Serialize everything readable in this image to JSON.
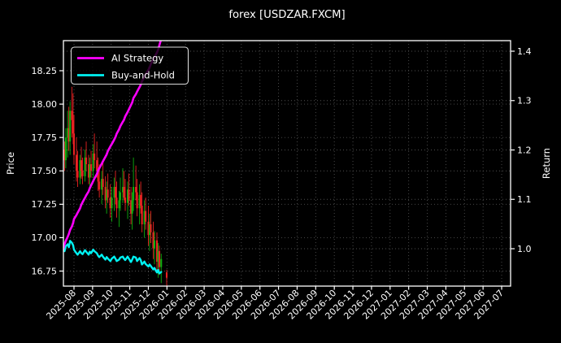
{
  "title": "forex [USDZAR.FXCM]",
  "colors": {
    "background": "#000000",
    "text": "#ffffff",
    "grid": "#4f4f4f",
    "spine": "#ffffff",
    "candle_up": "#0faf0f",
    "candle_down": "#ea2222",
    "ai_strategy": "#ff00ff",
    "buy_and_hold": "#00f2f2",
    "legend_border": "#d9d9d9"
  },
  "chart_data": {
    "type": "candlestick+line",
    "title": "forex [USDZAR.FXCM]",
    "grid": true,
    "left_axis": {
      "label": "Price",
      "ticks": [
        16.75,
        17.0,
        17.25,
        17.5,
        17.75,
        18.0,
        18.25
      ],
      "range": [
        16.64,
        18.48
      ]
    },
    "right_axis": {
      "label": "Return",
      "ticks": [
        1.0,
        1.1,
        1.2,
        1.3,
        1.4
      ],
      "range": [
        0.924,
        1.421
      ]
    },
    "x_axis": {
      "tick_rotation": 45,
      "range": [
        "2025-07-14",
        "2027-07-16"
      ],
      "tick_labels": [
        "2025-08",
        "2025-09",
        "2025-10",
        "2025-11",
        "2025-12",
        "2026-01",
        "2026-02",
        "2026-03",
        "2026-04",
        "2026-05",
        "2026-06",
        "2026-07",
        "2026-08",
        "2026-09",
        "2026-10",
        "2026-11",
        "2026-12",
        "2027-01",
        "2027-02",
        "2027-03",
        "2027-04",
        "2027-05",
        "2027-06",
        "2027-07"
      ]
    },
    "legend": [
      {
        "label": "AI Strategy",
        "color": "#ff00ff"
      },
      {
        "label": "Buy-and-Hold",
        "color": "#00f2f2"
      }
    ],
    "candles": [
      [
        "2025-07-14",
        17.6,
        17.78,
        17.38,
        17.66
      ],
      [
        "2025-07-16",
        17.66,
        17.72,
        17.5,
        17.58
      ],
      [
        "2025-07-18",
        17.58,
        17.82,
        17.52,
        17.75
      ],
      [
        "2025-07-21",
        17.75,
        17.95,
        17.6,
        17.82
      ],
      [
        "2025-07-23",
        17.82,
        17.98,
        17.65,
        17.72
      ],
      [
        "2025-07-25",
        17.72,
        18.02,
        17.62,
        17.95
      ],
      [
        "2025-07-28",
        17.95,
        18.13,
        17.75,
        17.88
      ],
      [
        "2025-07-30",
        17.88,
        18.08,
        17.7,
        17.78
      ],
      [
        "2025-08-01",
        17.78,
        17.92,
        17.55,
        17.62
      ],
      [
        "2025-08-05",
        17.62,
        17.75,
        17.42,
        17.5
      ],
      [
        "2025-08-07",
        17.5,
        17.65,
        17.38,
        17.45
      ],
      [
        "2025-08-11",
        17.45,
        17.62,
        17.4,
        17.58
      ],
      [
        "2025-08-13",
        17.58,
        17.68,
        17.44,
        17.5
      ],
      [
        "2025-08-15",
        17.5,
        17.6,
        17.4,
        17.46
      ],
      [
        "2025-08-19",
        17.46,
        17.66,
        17.42,
        17.6
      ],
      [
        "2025-08-21",
        17.6,
        17.72,
        17.5,
        17.55
      ],
      [
        "2025-08-25",
        17.55,
        17.62,
        17.4,
        17.45
      ],
      [
        "2025-08-27",
        17.45,
        17.6,
        17.38,
        17.55
      ],
      [
        "2025-08-29",
        17.55,
        17.65,
        17.45,
        17.5
      ],
      [
        "2025-09-02",
        17.5,
        17.7,
        17.45,
        17.63
      ],
      [
        "2025-09-04",
        17.63,
        17.78,
        17.52,
        17.58
      ],
      [
        "2025-09-08",
        17.58,
        17.72,
        17.45,
        17.5
      ],
      [
        "2025-09-10",
        17.5,
        17.6,
        17.35,
        17.42
      ],
      [
        "2025-09-12",
        17.42,
        17.55,
        17.3,
        17.36
      ],
      [
        "2025-09-16",
        17.36,
        17.5,
        17.25,
        17.44
      ],
      [
        "2025-09-18",
        17.44,
        17.58,
        17.32,
        17.38
      ],
      [
        "2025-09-22",
        17.38,
        17.46,
        17.22,
        17.28
      ],
      [
        "2025-09-24",
        17.28,
        17.42,
        17.18,
        17.36
      ],
      [
        "2025-09-26",
        17.36,
        17.48,
        17.26,
        17.3
      ],
      [
        "2025-09-30",
        17.3,
        17.4,
        17.15,
        17.22
      ],
      [
        "2025-10-02",
        17.22,
        17.38,
        17.12,
        17.3
      ],
      [
        "2025-10-06",
        17.3,
        17.45,
        17.2,
        17.38
      ],
      [
        "2025-10-08",
        17.38,
        17.5,
        17.25,
        17.3
      ],
      [
        "2025-10-10",
        17.3,
        17.42,
        17.15,
        17.22
      ],
      [
        "2025-10-14",
        17.22,
        17.35,
        17.08,
        17.28
      ],
      [
        "2025-10-16",
        17.28,
        17.45,
        17.2,
        17.34
      ],
      [
        "2025-10-20",
        17.34,
        17.52,
        17.26,
        17.38
      ],
      [
        "2025-10-22",
        17.38,
        17.5,
        17.28,
        17.3
      ],
      [
        "2025-10-24",
        17.3,
        17.44,
        17.2,
        17.26
      ],
      [
        "2025-10-28",
        17.26,
        17.42,
        17.14,
        17.36
      ],
      [
        "2025-10-30",
        17.36,
        17.48,
        17.24,
        17.28
      ],
      [
        "2025-11-03",
        17.28,
        17.38,
        17.1,
        17.18
      ],
      [
        "2025-11-05",
        17.18,
        17.34,
        17.06,
        17.28
      ],
      [
        "2025-11-07",
        17.28,
        17.6,
        17.2,
        17.38
      ],
      [
        "2025-11-11",
        17.38,
        17.54,
        17.28,
        17.34
      ],
      [
        "2025-11-13",
        17.34,
        17.44,
        17.16,
        17.22
      ],
      [
        "2025-11-17",
        17.22,
        17.4,
        17.1,
        17.32
      ],
      [
        "2025-11-19",
        17.32,
        17.42,
        17.18,
        17.24
      ],
      [
        "2025-11-21",
        17.24,
        17.34,
        17.04,
        17.1
      ],
      [
        "2025-11-25",
        17.1,
        17.28,
        17.0,
        17.2
      ],
      [
        "2025-11-27",
        17.2,
        17.3,
        17.06,
        17.12
      ],
      [
        "2025-12-01",
        17.12,
        17.24,
        16.94,
        17.02
      ],
      [
        "2025-12-03",
        17.02,
        17.18,
        16.9,
        17.1
      ],
      [
        "2025-12-05",
        17.1,
        17.2,
        16.96,
        17.04
      ],
      [
        "2025-12-09",
        17.04,
        17.12,
        16.84,
        16.92
      ],
      [
        "2025-12-11",
        16.92,
        17.05,
        16.8,
        16.98
      ],
      [
        "2025-12-15",
        16.98,
        17.04,
        16.74,
        16.82
      ],
      [
        "2025-12-17",
        16.82,
        16.96,
        16.7,
        16.9
      ],
      [
        "2025-12-19",
        16.9,
        16.94,
        16.72,
        16.78
      ],
      [
        "2025-12-22",
        16.78,
        16.88,
        16.66,
        16.84
      ],
      [
        "2025-12-31",
        16.74,
        16.76,
        16.64,
        16.7
      ]
    ],
    "series_dates": [
      "2025-07-14",
      "2025-07-16",
      "2025-07-18",
      "2025-07-21",
      "2025-07-23",
      "2025-07-25",
      "2025-07-28",
      "2025-07-30",
      "2025-08-01",
      "2025-08-05",
      "2025-08-07",
      "2025-08-11",
      "2025-08-13",
      "2025-08-15",
      "2025-08-19",
      "2025-08-21",
      "2025-08-25",
      "2025-08-27",
      "2025-08-29",
      "2025-09-02",
      "2025-09-04",
      "2025-09-08",
      "2025-09-10",
      "2025-09-12",
      "2025-09-16",
      "2025-09-18",
      "2025-09-22",
      "2025-09-24",
      "2025-09-26",
      "2025-09-30",
      "2025-10-02",
      "2025-10-06",
      "2025-10-08",
      "2025-10-10",
      "2025-10-14",
      "2025-10-16",
      "2025-10-20",
      "2025-10-22",
      "2025-10-24",
      "2025-10-28",
      "2025-10-30",
      "2025-11-03",
      "2025-11-05",
      "2025-11-07",
      "2025-11-11",
      "2025-11-13",
      "2025-11-17",
      "2025-11-19",
      "2025-11-21",
      "2025-11-25",
      "2025-11-27",
      "2025-12-01",
      "2025-12-03",
      "2025-12-05",
      "2025-12-09",
      "2025-12-11",
      "2025-12-15",
      "2025-12-17",
      "2025-12-19",
      "2025-12-22"
    ],
    "series": [
      {
        "name": "AI Strategy",
        "axis": "right",
        "color": "#ff00ff",
        "values": [
          1.0,
          1.009,
          1.016,
          1.024,
          1.03,
          1.038,
          1.045,
          1.052,
          1.06,
          1.068,
          1.073,
          1.082,
          1.089,
          1.094,
          1.103,
          1.108,
          1.116,
          1.123,
          1.128,
          1.137,
          1.142,
          1.151,
          1.158,
          1.163,
          1.172,
          1.177,
          1.186,
          1.191,
          1.198,
          1.207,
          1.212,
          1.221,
          1.226,
          1.233,
          1.242,
          1.248,
          1.257,
          1.261,
          1.268,
          1.277,
          1.282,
          1.291,
          1.296,
          1.305,
          1.313,
          1.318,
          1.327,
          1.332,
          1.339,
          1.348,
          1.353,
          1.362,
          1.367,
          1.374,
          1.383,
          1.388,
          1.397,
          1.403,
          1.412,
          1.425
        ]
      },
      {
        "name": "Buy-and-Hold",
        "axis": "right",
        "color": "#00f2f2",
        "values": [
          1.0,
          0.995,
          1.005,
          1.009,
          1.003,
          1.016,
          1.012,
          1.007,
          0.998,
          0.991,
          0.988,
          0.995,
          0.991,
          0.989,
          0.997,
          0.994,
          0.988,
          0.994,
          0.991,
          0.998,
          0.995,
          0.991,
          0.986,
          0.983,
          0.988,
          0.984,
          0.978,
          0.983,
          0.98,
          0.975,
          0.98,
          0.984,
          0.98,
          0.975,
          0.978,
          0.982,
          0.984,
          0.98,
          0.977,
          0.984,
          0.98,
          0.973,
          0.978,
          0.984,
          0.982,
          0.975,
          0.981,
          0.977,
          0.968,
          0.974,
          0.969,
          0.964,
          0.968,
          0.965,
          0.958,
          0.961,
          0.952,
          0.957,
          0.95,
          0.953
        ]
      }
    ]
  }
}
